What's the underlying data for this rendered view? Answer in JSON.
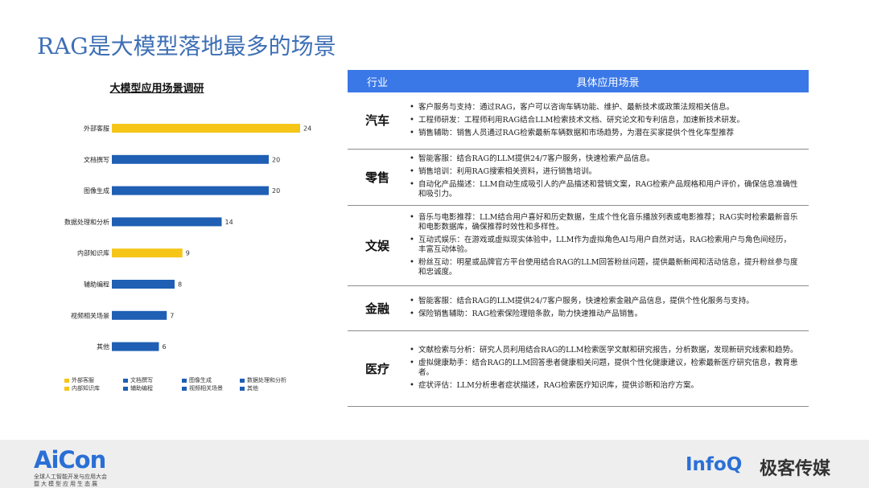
{
  "slide": {
    "title": "RAG是大模型落地最多的场景"
  },
  "chart_data": {
    "type": "bar",
    "title": "大模型应用场景调研",
    "categories": [
      "外部客服",
      "文档撰写",
      "图像生成",
      "数据处理和分析",
      "内部知识库",
      "辅助编程",
      "视频相关场景",
      "其他"
    ],
    "values": [
      24,
      20,
      20,
      14,
      9,
      8,
      7,
      6
    ],
    "colors": [
      "#f5c518",
      "#1f5fb4",
      "#1f5fb4",
      "#1f5fb4",
      "#f5c518",
      "#1f5fb4",
      "#1f5fb4",
      "#1f5fb4"
    ],
    "xlim": [
      0,
      24
    ],
    "orientation": "horizontal",
    "legend": [
      "外部客服",
      "文档撰写",
      "图像生成",
      "数据处理和分析",
      "内部知识库",
      "辅助编程",
      "视频相关场景",
      "其他"
    ],
    "legend_position": "bottom"
  },
  "table": {
    "headers": [
      "行业",
      "具体应用场景"
    ],
    "rows": [
      {
        "industry": "汽车",
        "items": [
          "客户服务与支持：通过RAG，客户可以咨询车辆功能、维护、最新技术或政策法规相关信息。",
          "工程师研发：工程师利用RAG结合LLM检索技术文档、研究论文和专利信息，加速新技术研发。",
          "销售辅助：销售人员通过RAG检索最新车辆数据和市场趋势，为潜在买家提供个性化车型推荐"
        ]
      },
      {
        "industry": "零售",
        "items": [
          "智能客服：结合RAG的LLM提供24/7客户服务，快速检索产品信息。",
          "销售培训：利用RAG搜索相关资料，进行销售培训。",
          "自动化产品描述：LLM自动生成吸引人的产品描述和营销文案，RAG检索产品规格和用户评价，确保信息准确性和吸引力。"
        ]
      },
      {
        "industry": "文娱",
        "items": [
          "音乐与电影推荐：LLM结合用户喜好和历史数据，生成个性化音乐播放列表或电影推荐；RAG实时检索最新音乐和电影数据库，确保推荐时效性和多样性。",
          "互动式娱乐：在游戏或虚拟现实体验中，LLM作为虚拟角色AI与用户自然对话，RAG检索用户与角色间经历，丰富互动体验。",
          "粉丝互动：明星或品牌官方平台使用结合RAG的LLM回答粉丝问题，提供最新新闻和活动信息，提升粉丝参与度和忠诚度。"
        ]
      },
      {
        "industry": "金融",
        "items": [
          "智能客服：结合RAG的LLM提供24/7客户服务，快速检索金融产品信息，提供个性化服务与支持。",
          "保险销售辅助：RAG检索保险理赔条款，助力快速推动产品销售。"
        ]
      },
      {
        "industry": "医疗",
        "items": [
          "文献检索与分析：研究人员利用结合RAG的LLM检索医学文献和研究报告，分析数据，发现新研究线索和趋势。",
          "虚拟健康助手：结合RAG的LLM回答患者健康相关问题，提供个性化健康建议，检索最新医疗研究信息，教育患者。",
          "症状评估：LLM分析患者症状描述，RAG检索医疗知识库，提供诊断和治疗方案。"
        ]
      }
    ]
  },
  "footer": {
    "aicon_logo": "AiCon",
    "aicon_line1": "全球人工智能开发与应用大会",
    "aicon_line2": "暨大模型应用生态展",
    "infoq_logo_a": "Info",
    "infoq_logo_b": "Q",
    "geek_logo": "极客传媒"
  }
}
